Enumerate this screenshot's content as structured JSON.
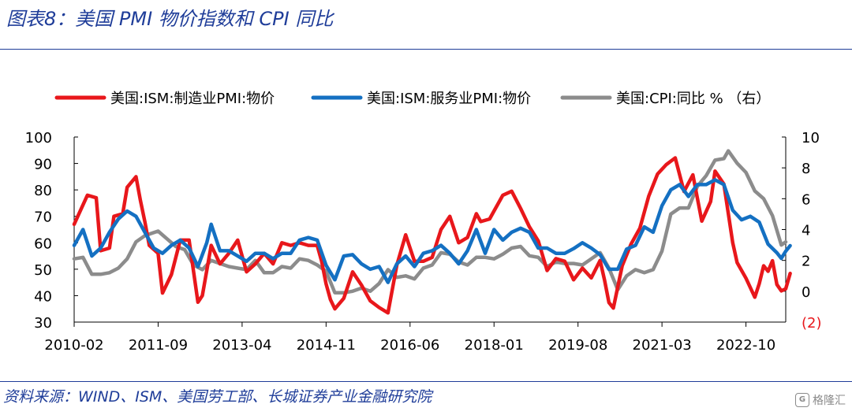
{
  "figure": {
    "title": "图表8：美国 PMI 物价指数和 CPI 同比",
    "source": "资料来源：WIND、ISM、美国劳工部、长城证券产业金融研究院",
    "watermark": "格隆汇"
  },
  "colors": {
    "manufacturing": "#e8171b",
    "services": "#1470c2",
    "cpi": "#8c8c8c",
    "title": "#1f3d99",
    "negative_tick": "#e8171b"
  },
  "chart_data": {
    "type": "line",
    "x_tick_labels": [
      "2010-02",
      "2011-09",
      "2013-04",
      "2014-11",
      "2016-06",
      "2018-01",
      "2019-08",
      "2021-03",
      "2022-10"
    ],
    "x_range": [
      "2010-02",
      "2023-07"
    ],
    "left_axis": {
      "ylim": [
        30,
        100
      ],
      "ticks": [
        "30",
        "40",
        "50",
        "60",
        "70",
        "80",
        "90",
        "100"
      ]
    },
    "right_axis": {
      "ylim": [
        -2,
        10
      ],
      "ticks": [
        "(2)",
        "0",
        "2",
        "4",
        "6",
        "8",
        "10"
      ]
    },
    "legend": {
      "placement": "top",
      "labels": [
        "美国:ISM:制造业PMI:物价",
        "美国:ISM:服务业PMI:物价",
        "美国:CPI:同比 %  （右）"
      ]
    },
    "grid": false,
    "series": [
      {
        "name": "美国:ISM:制造业PMI:物价",
        "axis": "left",
        "points": [
          [
            "2010-02",
            67
          ],
          [
            "2010-05",
            78
          ],
          [
            "2010-07",
            77
          ],
          [
            "2010-08",
            57
          ],
          [
            "2010-10",
            58
          ],
          [
            "2010-11",
            70
          ],
          [
            "2011-01",
            71
          ],
          [
            "2011-02",
            81
          ],
          [
            "2011-04",
            85
          ],
          [
            "2011-05",
            76
          ],
          [
            "2011-06",
            68
          ],
          [
            "2011-07",
            59
          ],
          [
            "2011-09",
            56
          ],
          [
            "2011-10",
            41
          ],
          [
            "2011-12",
            48
          ],
          [
            "2012-02",
            61
          ],
          [
            "2012-04",
            61
          ],
          [
            "2012-06",
            37.5
          ],
          [
            "2012-07",
            40
          ],
          [
            "2012-09",
            59
          ],
          [
            "2012-11",
            52
          ],
          [
            "2013-01",
            56
          ],
          [
            "2013-03",
            61
          ],
          [
            "2013-05",
            49
          ],
          [
            "2013-07",
            52
          ],
          [
            "2013-09",
            56
          ],
          [
            "2013-11",
            52
          ],
          [
            "2014-01",
            60
          ],
          [
            "2014-03",
            59
          ],
          [
            "2014-05",
            60
          ],
          [
            "2014-07",
            59
          ],
          [
            "2014-09",
            59
          ],
          [
            "2014-10",
            53
          ],
          [
            "2014-11",
            44.5
          ],
          [
            "2014-12",
            38.5
          ],
          [
            "2015-01",
            35
          ],
          [
            "2015-03",
            39
          ],
          [
            "2015-05",
            49
          ],
          [
            "2015-07",
            44
          ],
          [
            "2015-09",
            38
          ],
          [
            "2015-11",
            35.5
          ],
          [
            "2016-01",
            33.5
          ],
          [
            "2016-03",
            51.5
          ],
          [
            "2016-05",
            63
          ],
          [
            "2016-07",
            53
          ],
          [
            "2016-09",
            53
          ],
          [
            "2016-11",
            54.5
          ],
          [
            "2017-01",
            65
          ],
          [
            "2017-03",
            70
          ],
          [
            "2017-05",
            60
          ],
          [
            "2017-07",
            62
          ],
          [
            "2017-09",
            71
          ],
          [
            "2017-10",
            68
          ],
          [
            "2017-12",
            69
          ],
          [
            "2018-01",
            72
          ],
          [
            "2018-03",
            78
          ],
          [
            "2018-05",
            79.5
          ],
          [
            "2018-07",
            73
          ],
          [
            "2018-09",
            66
          ],
          [
            "2018-11",
            60.7
          ],
          [
            "2019-01",
            49.5
          ],
          [
            "2019-03",
            54
          ],
          [
            "2019-05",
            53
          ],
          [
            "2019-07",
            46
          ],
          [
            "2019-09",
            50.4
          ],
          [
            "2019-11",
            46.7
          ],
          [
            "2020-01",
            53.3
          ],
          [
            "2020-02",
            45.9
          ],
          [
            "2020-03",
            37.4
          ],
          [
            "2020-04",
            35.3
          ],
          [
            "2020-06",
            51.3
          ],
          [
            "2020-08",
            59.5
          ],
          [
            "2020-10",
            65.5
          ],
          [
            "2020-12",
            77.6
          ],
          [
            "2021-02",
            86
          ],
          [
            "2021-04",
            89.6
          ],
          [
            "2021-06",
            92.1
          ],
          [
            "2021-08",
            79.4
          ],
          [
            "2021-10",
            85.7
          ],
          [
            "2021-12",
            68.2
          ],
          [
            "2022-02",
            75.6
          ],
          [
            "2022-03",
            87.1
          ],
          [
            "2022-05",
            82.2
          ],
          [
            "2022-07",
            60
          ],
          [
            "2022-08",
            52.5
          ],
          [
            "2022-10",
            46.6
          ],
          [
            "2022-12",
            39.4
          ],
          [
            "2023-01",
            44.5
          ],
          [
            "2023-02",
            51.3
          ],
          [
            "2023-03",
            49.2
          ],
          [
            "2023-04",
            53.2
          ],
          [
            "2023-05",
            44.2
          ],
          [
            "2023-06",
            41.8
          ],
          [
            "2023-07",
            42.6
          ],
          [
            "2023-08",
            48.4
          ]
        ]
      },
      {
        "name": "美国:ISM:服务业PMI:物价",
        "axis": "left",
        "points": [
          [
            "2010-02",
            59
          ],
          [
            "2010-04",
            65
          ],
          [
            "2010-06",
            55
          ],
          [
            "2010-08",
            58
          ],
          [
            "2010-10",
            64
          ],
          [
            "2010-12",
            69
          ],
          [
            "2011-02",
            72
          ],
          [
            "2011-04",
            70
          ],
          [
            "2011-06",
            64
          ],
          [
            "2011-08",
            58
          ],
          [
            "2011-10",
            56
          ],
          [
            "2011-12",
            59
          ],
          [
            "2012-02",
            61
          ],
          [
            "2012-04",
            58
          ],
          [
            "2012-06",
            51
          ],
          [
            "2012-08",
            60
          ],
          [
            "2012-09",
            67
          ],
          [
            "2012-11",
            57
          ],
          [
            "2013-01",
            57
          ],
          [
            "2013-03",
            55
          ],
          [
            "2013-05",
            53
          ],
          [
            "2013-07",
            56
          ],
          [
            "2013-09",
            56
          ],
          [
            "2013-11",
            54
          ],
          [
            "2014-01",
            56
          ],
          [
            "2014-03",
            56
          ],
          [
            "2014-05",
            61
          ],
          [
            "2014-07",
            62
          ],
          [
            "2014-09",
            61
          ],
          [
            "2014-11",
            51.5
          ],
          [
            "2015-01",
            46
          ],
          [
            "2015-03",
            55
          ],
          [
            "2015-05",
            55.5
          ],
          [
            "2015-07",
            52
          ],
          [
            "2015-09",
            50
          ],
          [
            "2015-11",
            51
          ],
          [
            "2016-01",
            45
          ],
          [
            "2016-03",
            52
          ],
          [
            "2016-05",
            55
          ],
          [
            "2016-07",
            51
          ],
          [
            "2016-09",
            56
          ],
          [
            "2016-11",
            57
          ],
          [
            "2017-01",
            59
          ],
          [
            "2017-03",
            56
          ],
          [
            "2017-05",
            52
          ],
          [
            "2017-07",
            57
          ],
          [
            "2017-09",
            65
          ],
          [
            "2017-11",
            56
          ],
          [
            "2018-01",
            65
          ],
          [
            "2018-03",
            61
          ],
          [
            "2018-05",
            64
          ],
          [
            "2018-07",
            65.5
          ],
          [
            "2018-09",
            64
          ],
          [
            "2018-11",
            58
          ],
          [
            "2019-01",
            58
          ],
          [
            "2019-03",
            56
          ],
          [
            "2019-05",
            56
          ],
          [
            "2019-07",
            57.8
          ],
          [
            "2019-09",
            60
          ],
          [
            "2019-11",
            58
          ],
          [
            "2020-01",
            55.5
          ],
          [
            "2020-03",
            50
          ],
          [
            "2020-05",
            50.0
          ],
          [
            "2020-07",
            57.6
          ],
          [
            "2020-09",
            59
          ],
          [
            "2020-11",
            66
          ],
          [
            "2021-01",
            64
          ],
          [
            "2021-03",
            74
          ],
          [
            "2021-05",
            80
          ],
          [
            "2021-07",
            82
          ],
          [
            "2021-09",
            77.5
          ],
          [
            "2021-11",
            82
          ],
          [
            "2022-01",
            82
          ],
          [
            "2022-03",
            83.8
          ],
          [
            "2022-05",
            82
          ],
          [
            "2022-07",
            72.3
          ],
          [
            "2022-09",
            68.7
          ],
          [
            "2022-11",
            70
          ],
          [
            "2023-01",
            67.8
          ],
          [
            "2023-03",
            59.5
          ],
          [
            "2023-05",
            56.2
          ],
          [
            "2023-06",
            54.1
          ],
          [
            "2023-07",
            56.8
          ],
          [
            "2023-08",
            58.9
          ]
        ]
      },
      {
        "name": "美国:CPI:同比 %  （右）",
        "axis": "right",
        "points": [
          [
            "2010-02",
            2.1
          ],
          [
            "2010-04",
            2.2
          ],
          [
            "2010-06",
            1.1
          ],
          [
            "2010-08",
            1.1
          ],
          [
            "2010-10",
            1.2
          ],
          [
            "2010-12",
            1.5
          ],
          [
            "2011-02",
            2.1
          ],
          [
            "2011-04",
            3.2
          ],
          [
            "2011-06",
            3.6
          ],
          [
            "2011-08",
            3.8
          ],
          [
            "2011-09",
            3.9
          ],
          [
            "2011-11",
            3.4
          ],
          [
            "2012-01",
            2.9
          ],
          [
            "2012-03",
            2.7
          ],
          [
            "2012-05",
            1.7
          ],
          [
            "2012-07",
            1.4
          ],
          [
            "2012-09",
            2.0
          ],
          [
            "2012-11",
            1.8
          ],
          [
            "2013-01",
            1.6
          ],
          [
            "2013-03",
            1.5
          ],
          [
            "2013-05",
            1.4
          ],
          [
            "2013-07",
            2.0
          ],
          [
            "2013-09",
            1.2
          ],
          [
            "2013-11",
            1.2
          ],
          [
            "2014-01",
            1.6
          ],
          [
            "2014-03",
            1.5
          ],
          [
            "2014-05",
            2.1
          ],
          [
            "2014-07",
            2.0
          ],
          [
            "2014-09",
            1.7
          ],
          [
            "2014-11",
            1.3
          ],
          [
            "2015-01",
            -0.1
          ],
          [
            "2015-03",
            -0.1
          ],
          [
            "2015-05",
            0.0
          ],
          [
            "2015-07",
            0.2
          ],
          [
            "2015-09",
            0.0
          ],
          [
            "2015-11",
            0.5
          ],
          [
            "2016-01",
            1.4
          ],
          [
            "2016-03",
            0.9
          ],
          [
            "2016-05",
            1.0
          ],
          [
            "2016-07",
            0.8
          ],
          [
            "2016-09",
            1.5
          ],
          [
            "2016-11",
            1.7
          ],
          [
            "2017-01",
            2.5
          ],
          [
            "2017-03",
            2.4
          ],
          [
            "2017-05",
            1.9
          ],
          [
            "2017-07",
            1.7
          ],
          [
            "2017-09",
            2.2
          ],
          [
            "2017-11",
            2.2
          ],
          [
            "2018-01",
            2.1
          ],
          [
            "2018-03",
            2.4
          ],
          [
            "2018-05",
            2.8
          ],
          [
            "2018-07",
            2.9
          ],
          [
            "2018-09",
            2.3
          ],
          [
            "2018-11",
            2.2
          ],
          [
            "2019-01",
            1.6
          ],
          [
            "2019-03",
            1.9
          ],
          [
            "2019-05",
            1.8
          ],
          [
            "2019-07",
            1.8
          ],
          [
            "2019-09",
            1.7
          ],
          [
            "2019-11",
            2.1
          ],
          [
            "2020-01",
            2.5
          ],
          [
            "2020-03",
            1.5
          ],
          [
            "2020-05",
            0.1
          ],
          [
            "2020-07",
            1.0
          ],
          [
            "2020-09",
            1.4
          ],
          [
            "2020-11",
            1.2
          ],
          [
            "2021-01",
            1.4
          ],
          [
            "2021-03",
            2.6
          ],
          [
            "2021-05",
            5.0
          ],
          [
            "2021-07",
            5.4
          ],
          [
            "2021-09",
            5.4
          ],
          [
            "2021-11",
            6.8
          ],
          [
            "2022-01",
            7.5
          ],
          [
            "2022-03",
            8.5
          ],
          [
            "2022-05",
            8.6
          ],
          [
            "2022-06",
            9.1
          ],
          [
            "2022-08",
            8.3
          ],
          [
            "2022-10",
            7.7
          ],
          [
            "2022-12",
            6.5
          ],
          [
            "2023-02",
            6.0
          ],
          [
            "2023-04",
            4.9
          ],
          [
            "2023-06",
            3.0
          ],
          [
            "2023-07",
            3.2
          ]
        ]
      }
    ]
  }
}
